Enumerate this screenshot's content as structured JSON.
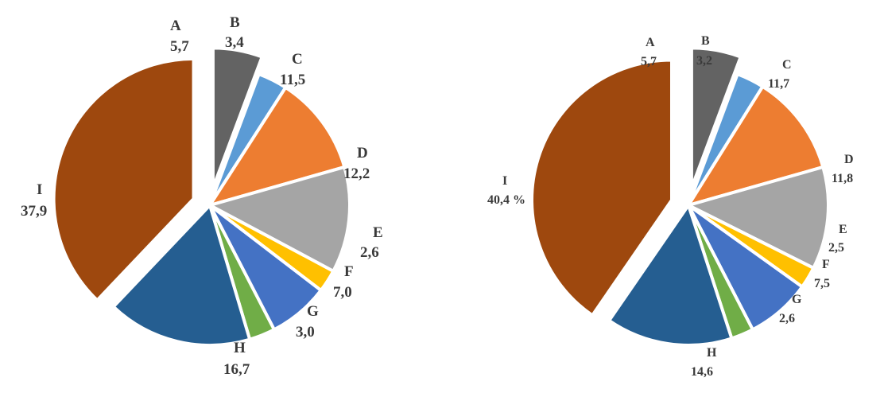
{
  "chart_data": [
    {
      "type": "pie",
      "title": "",
      "categories": [
        "A",
        "B",
        "C",
        "D",
        "E",
        "F",
        "G",
        "H",
        "I"
      ],
      "values": [
        5.7,
        3.4,
        11.5,
        12.2,
        2.6,
        7.0,
        3.0,
        16.7,
        37.9
      ],
      "value_labels": [
        "5,7",
        "3,4",
        "11,5",
        "12,2",
        "2,6",
        "7,0",
        "3,0",
        "16,7",
        "37,9"
      ],
      "exploded": [
        "A",
        "I"
      ]
    },
    {
      "type": "pie",
      "title": "",
      "categories": [
        "A",
        "B",
        "C",
        "D",
        "E",
        "F",
        "G",
        "H",
        "I"
      ],
      "values": [
        5.7,
        3.2,
        11.7,
        11.8,
        2.5,
        7.5,
        2.6,
        14.6,
        40.4
      ],
      "value_labels": [
        "5,7",
        "3,2",
        "11,7",
        "11,8",
        "2,5",
        "7,5",
        "2,6",
        "14,6",
        "40,4 %"
      ],
      "exploded": [
        "A",
        "I"
      ]
    }
  ],
  "colors": {
    "A": "#636363",
    "B": "#5b9bd5",
    "C": "#ed7d31",
    "D": "#a5a5a5",
    "E": "#ffc000",
    "F": "#4472c4",
    "G": "#70ad47",
    "H": "#255e91",
    "I": "#9e480e"
  }
}
